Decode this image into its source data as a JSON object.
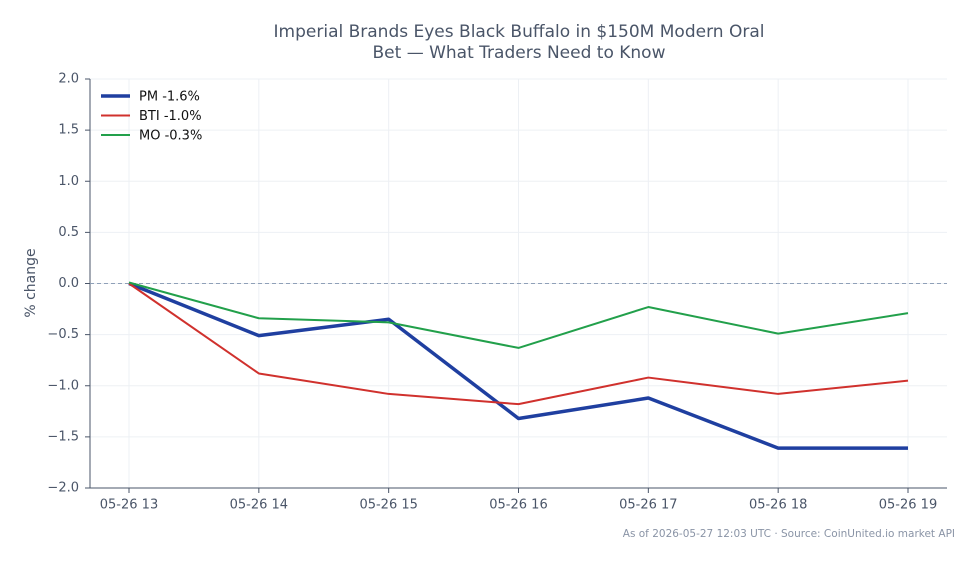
{
  "chart_data": {
    "type": "line",
    "title": "Imperial Brands Eyes Black Buffalo in $150M Modern Oral",
    "subtitle": "Bet — What Traders Need to Know",
    "y_label": "% change",
    "footer": "As of 2026-05-27 12:03 UTC · Source: CoinUnited.io market API",
    "categories": [
      "05-26 13",
      "05-26 14",
      "05-26 15",
      "05-26 16",
      "05-26 17",
      "05-26 18",
      "05-26 19"
    ],
    "series": [
      {
        "name": "PM -1.6%",
        "color": "#1f3fa0",
        "width": 3.5,
        "values": [
          0,
          -0.51,
          -0.35,
          -1.32,
          -1.12,
          -1.61,
          -1.61
        ]
      },
      {
        "name": "BTI -1.0%",
        "color": "#d0312d",
        "width": 2,
        "values": [
          0,
          -0.88,
          -1.08,
          -1.18,
          -0.92,
          -1.08,
          -0.95
        ]
      },
      {
        "name": "MO -0.3%",
        "color": "#22a04b",
        "width": 2,
        "values": [
          0.01,
          -0.34,
          -0.38,
          -0.63,
          -0.23,
          -0.49,
          -0.29
        ]
      }
    ],
    "ylim": [
      -2,
      2
    ],
    "yticks": [
      {
        "value": -2,
        "label": "−2.0"
      },
      {
        "value": -1.5,
        "label": "−1.5"
      },
      {
        "value": -1,
        "label": "−1.0"
      },
      {
        "value": -0.5,
        "label": "−0.5"
      },
      {
        "value": 0,
        "label": "0.0"
      },
      0.5,
      {
        "value": 1,
        "label": "1.0"
      },
      1.5,
      {
        "value": 2,
        "label": "2.0"
      }
    ],
    "reference_line": 0,
    "grid": true,
    "legend": "upper left"
  }
}
